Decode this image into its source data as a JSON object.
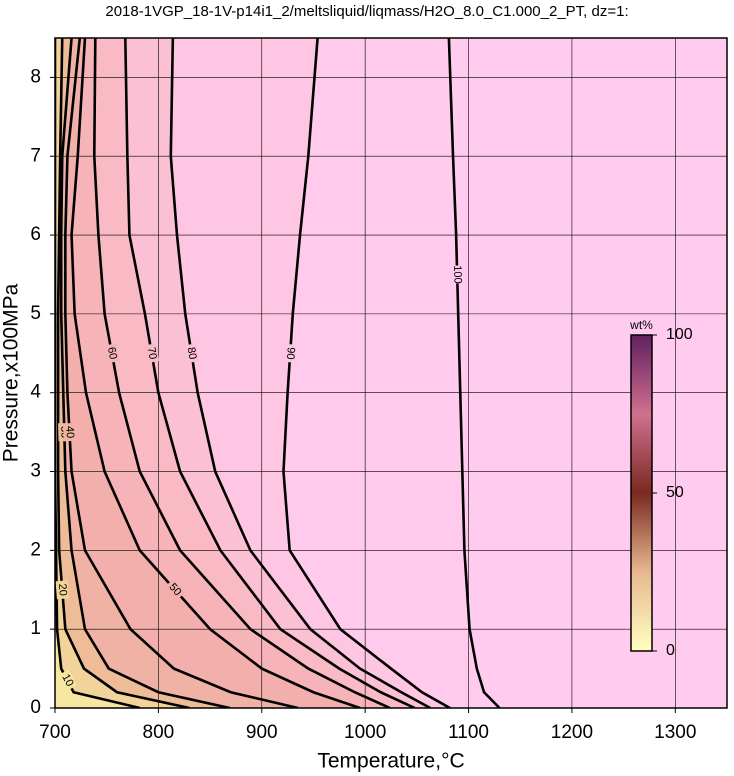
{
  "chart_data": {
    "type": "contour",
    "title": "2018-1VGP_18-1V-p14i1_2/meltsliquid/liqmass/H2O_8.0_C1.000_2_PT, dz=1:",
    "x_label": "Temperature,°C",
    "y_label": "Pressure,x100MPa",
    "xlim": [
      700,
      1350
    ],
    "xticks": [
      700,
      800,
      900,
      1000,
      1100,
      1200,
      1300
    ],
    "ylim": [
      0,
      8.5
    ],
    "yticks": [
      0,
      1,
      2,
      3,
      4,
      5,
      6,
      7,
      8
    ],
    "grid": true,
    "background": "#ffccf0",
    "y": [
      8.5,
      7,
      6,
      5,
      4,
      3,
      2,
      1,
      0.5,
      0.2,
      0
    ],
    "contours": [
      {
        "level": 10,
        "color": "#f6e6a0",
        "x": [
          700,
          700,
          700,
          700,
          700,
          700,
          701,
          702,
          706,
          718,
          782
        ]
      },
      {
        "level": 20,
        "color": "#f2d49a",
        "x": [
          707,
          705,
          704,
          703,
          703,
          703,
          704,
          710,
          728,
          760,
          830
        ]
      },
      {
        "level": 30,
        "color": "#eebd98",
        "x": [
          716,
          707,
          706,
          706,
          708,
          710,
          716,
          729,
          752,
          800,
          869
        ]
      },
      {
        "level": 40,
        "color": "#efb2a4",
        "x": [
          724,
          712,
          710,
          710,
          712,
          716,
          729,
          773,
          815,
          870,
          935
        ]
      },
      {
        "level": 50,
        "color": "#f2afac",
        "x": [
          729,
          722,
          716,
          719,
          730,
          748,
          782,
          850,
          900,
          950,
          995
        ]
      },
      {
        "level": 60,
        "color": "#f6b4b8",
        "x": [
          739,
          738,
          742,
          748,
          762,
          782,
          821,
          889,
          945,
          990,
          1024
        ]
      },
      {
        "level": 70,
        "color": "#f9bac6",
        "x": [
          768,
          770,
          772,
          787,
          800,
          821,
          860,
          918,
          975,
          1015,
          1048
        ]
      },
      {
        "level": 80,
        "color": "#fcc0d4",
        "x": [
          814,
          812,
          818,
          826,
          838,
          855,
          889,
          947,
          995,
          1035,
          1063
        ]
      },
      {
        "level": 90,
        "color": "#fec6e2",
        "x": [
          954,
          945,
          937,
          930,
          925,
          921,
          927,
          976,
          1025,
          1055,
          1082
        ]
      },
      {
        "level": 100,
        "color": "#ffcaec",
        "x": [
          1081,
          1085,
          1088,
          1090,
          1092,
          1094,
          1096,
          1101,
          1108,
          1115,
          1130
        ]
      }
    ],
    "colorbar": {
      "label": "wt%",
      "lim": [
        0,
        100
      ],
      "ticks": [
        0,
        50,
        100
      ],
      "colors": [
        "#ffffc0",
        "#e8b890",
        "#7a2a20",
        "#d07090",
        "#602060"
      ]
    }
  }
}
